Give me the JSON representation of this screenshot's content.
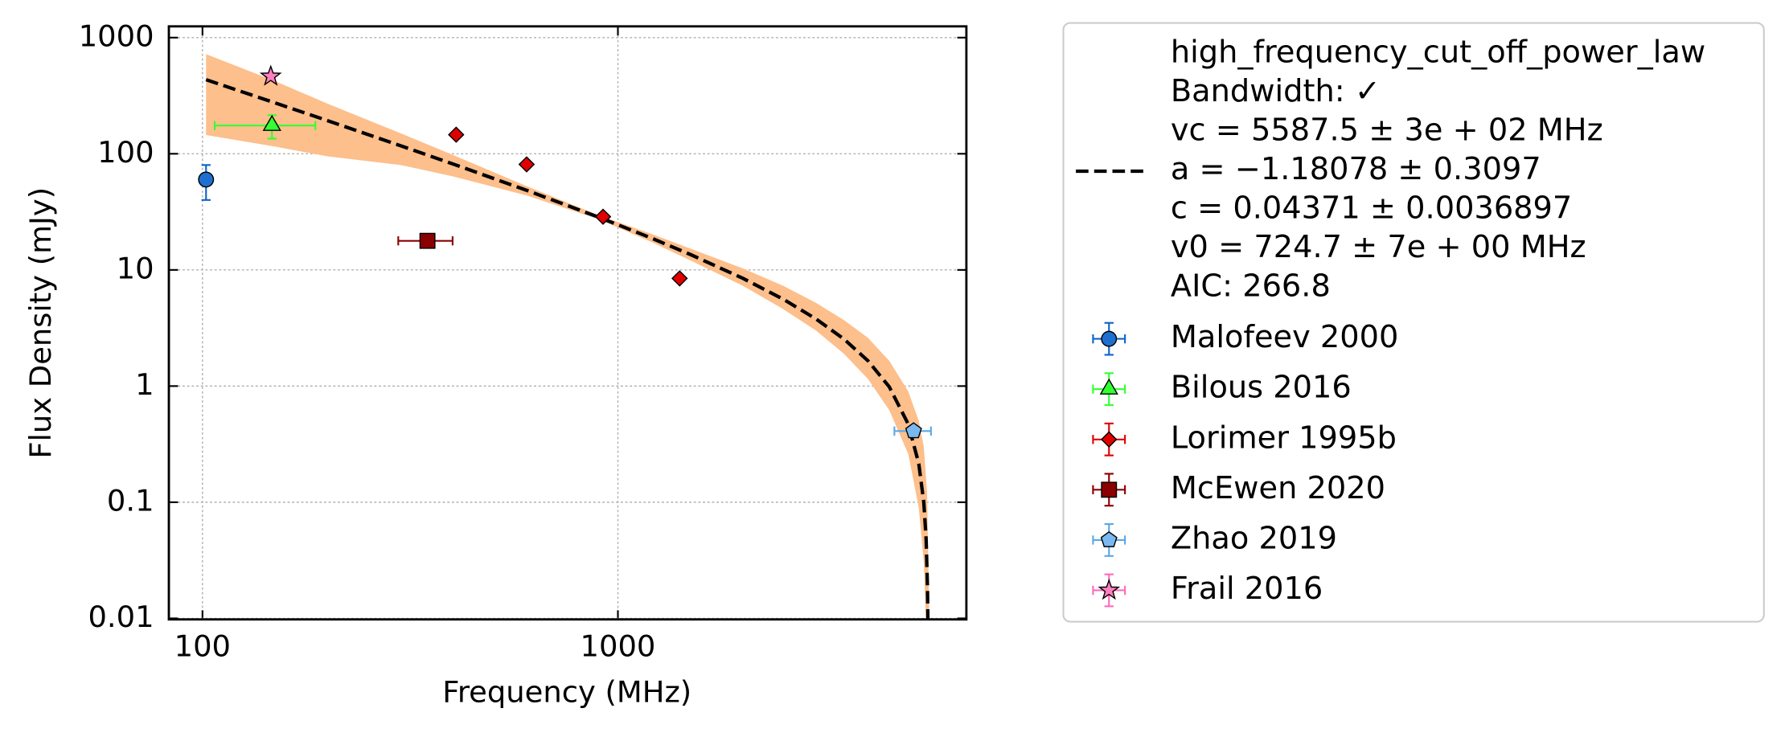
{
  "chart_data": {
    "type": "scatter",
    "xlabel": "Frequency (MHz)",
    "ylabel": "Flux Density (mJy)",
    "xscale": "log",
    "yscale": "log",
    "xlim": [
      83,
      6900
    ],
    "ylim": [
      0.0098,
      1250
    ],
    "xticks": [
      100,
      1000
    ],
    "yticks": [
      0.01,
      0.1,
      1,
      10,
      100,
      1000
    ],
    "grid": true,
    "legend": "outside right",
    "fit": {
      "color": "#000000",
      "band_color": "#fdbf8b",
      "legend": [
        "high_frequency_cut_off_power_law",
        "Bandwidth: ✓",
        "vc = 5587.5 ± 3e + 02 MHz",
        "a = −1.18078 ± 0.3097",
        "c = 0.04371 ± 0.0036897",
        "v0 = 724.7 ± 7e + 00 MHz",
        "AIC: 266.8"
      ],
      "x": [
        102,
        150,
        200,
        300,
        400,
        600,
        900,
        1200,
        1500,
        2000,
        2500,
        3000,
        3500,
        4000,
        4500,
        5000,
        5300,
        5450,
        5520,
        5560,
        5570,
        5575
      ],
      "values": [
        434.6,
        273.2,
        192.8,
        117.2,
        81.9,
        48.8,
        28.4,
        18.9,
        13.5,
        8.46,
        5.6,
        3.78,
        2.54,
        1.65,
        0.985,
        0.47,
        0.2146,
        0.0993,
        0.048,
        0.0194,
        0.0123,
        0.0088
      ],
      "band_x": [
        102,
        150,
        200,
        300,
        400,
        600,
        900,
        1200,
        1500,
        2000,
        2500,
        3000,
        3500,
        4000,
        4500,
        5000,
        5300,
        5450,
        5550,
        5620
      ],
      "band_upper": [
        720,
        420,
        270,
        150,
        98,
        53,
        29.5,
        20.5,
        15.2,
        10.3,
        7.3,
        5.2,
        3.7,
        2.6,
        1.65,
        0.9,
        0.5,
        0.3,
        0.12,
        0.009
      ],
      "band_lower": [
        145,
        115,
        95,
        80,
        64,
        44,
        27.3,
        17.5,
        12,
        7.3,
        4.6,
        3.0,
        1.9,
        1.15,
        0.62,
        0.26,
        0.09,
        0.03,
        0.005,
        0.005
      ]
    },
    "series": [
      {
        "name": "Malofeev 2000",
        "marker": "circle",
        "color": "#1f6fd0",
        "ecolor": "#0f64c8",
        "x": [
          102
        ],
        "values": [
          60
        ],
        "xerr": [
          null
        ],
        "yerr": [
          20
        ]
      },
      {
        "name": "Bilous 2016",
        "marker": "triangle",
        "color": "#33ff33",
        "ecolor": "#33ff33",
        "x": [
          147
        ],
        "values": [
          175
        ],
        "xerr": [
          40
        ],
        "yerr": [
          40
        ]
      },
      {
        "name": "Lorimer 1995b",
        "marker": "diamond",
        "color": "#e00000",
        "ecolor": "#e00000",
        "x": [
          408,
          603,
          921,
          1408
        ],
        "values": [
          146,
          81,
          28.7,
          8.45
        ],
        "xerr": [
          null,
          null,
          null,
          null
        ],
        "yerr": [
          null,
          null,
          null,
          null
        ]
      },
      {
        "name": "McEwen 2020",
        "marker": "square",
        "color": "#8b0000",
        "ecolor": "#8b0000",
        "x": [
          348
        ],
        "values": [
          17.8
        ],
        "xerr": [
          52
        ],
        "yerr": [
          null
        ]
      },
      {
        "name": "Zhao 2019",
        "marker": "pentagon",
        "color": "#7ab8f0",
        "ecolor": "#5aa8e8",
        "x": [
          5150
        ],
        "values": [
          0.41
        ],
        "xerr": [
          520
        ],
        "yerr": [
          null
        ]
      },
      {
        "name": "Frail 2016",
        "marker": "star",
        "color": "#ff7fc0",
        "ecolor": "#ff6ab8",
        "x": [
          146
        ],
        "values": [
          464
        ],
        "xerr": [
          null
        ],
        "yerr": [
          null
        ]
      }
    ]
  }
}
